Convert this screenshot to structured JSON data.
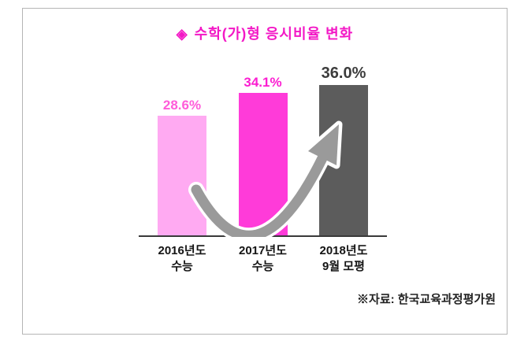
{
  "frame": {
    "border_color": "#b5b5b5"
  },
  "title": {
    "icon": "◈",
    "text": "수학(가)형 응시비율 변화",
    "color": "#f318c6"
  },
  "source_note": "※자료: 한국교육과정평가원",
  "chart_data": {
    "type": "bar",
    "title": "수학(가)형 응시비율 변화",
    "categories": [
      "2016년도\n수능",
      "2017년도\n수능",
      "2018년도\n9월 모평"
    ],
    "values": [
      28.6,
      34.1,
      36.0
    ],
    "labels": [
      "28.6%",
      "34.1%",
      "36.0%"
    ],
    "bar_colors": [
      "#ffaaf2",
      "#ff3bd9",
      "#5c5c5c"
    ],
    "label_colors": [
      "#ff5cd9",
      "#fb1ed1",
      "#3c3c3c"
    ],
    "xlabel": "",
    "ylabel": "",
    "ylim": [
      0,
      40
    ],
    "grid": false,
    "legend": false,
    "annotations": [
      "gray curved swoosh arrow from first bar rising toward third bar, indicating increase"
    ]
  }
}
